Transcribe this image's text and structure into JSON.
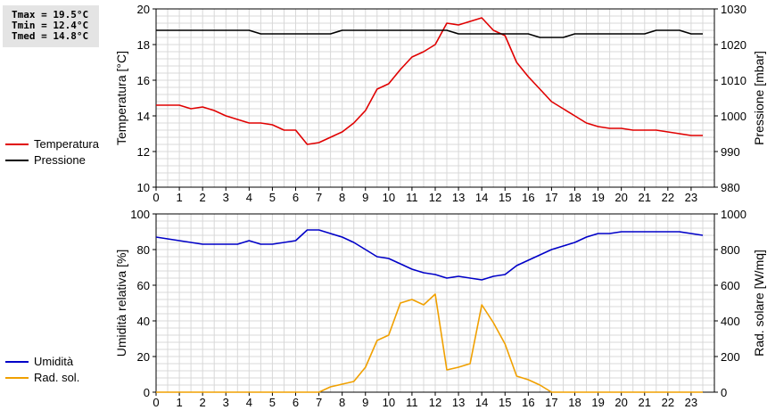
{
  "stats": {
    "tmax": "Tmax = 19.5°C",
    "tmin": "Tmin = 12.4°C",
    "tmed": "Tmed = 14.8°C"
  },
  "legend_top": [
    {
      "label": "Temperatura",
      "color": "#e00000"
    },
    {
      "label": "Pressione",
      "color": "#000000"
    }
  ],
  "legend_bottom": [
    {
      "label": "Umidità",
      "color": "#0000c8"
    },
    {
      "label": "Rad. sol.",
      "color": "#f0a000"
    }
  ],
  "chart_data": [
    {
      "type": "line",
      "xlabel": "",
      "ylabel": "Temperatura [°C]",
      "y2label": "Pressione [mbar]",
      "xlim": [
        0,
        24
      ],
      "ylim": [
        10,
        20
      ],
      "y2lim": [
        980,
        1030
      ],
      "xticks": [
        "0",
        "1",
        "2",
        "3",
        "4",
        "5",
        "6",
        "7",
        "8",
        "9",
        "10",
        "11",
        "12",
        "13",
        "14",
        "15",
        "16",
        "17",
        "18",
        "19",
        "20",
        "21",
        "22",
        "23"
      ],
      "yticks": [
        "10",
        "12",
        "14",
        "16",
        "18",
        "20"
      ],
      "y2ticks": [
        "980",
        "990",
        "1000",
        "1010",
        "1020",
        "1030"
      ],
      "grid": true,
      "series": [
        {
          "name": "Temperatura",
          "axis": "left",
          "color": "#e00000",
          "x": [
            0,
            0.5,
            1,
            1.5,
            2,
            2.5,
            3,
            3.5,
            4,
            4.5,
            5,
            5.5,
            6,
            6.5,
            7,
            7.5,
            8,
            8.5,
            9,
            9.5,
            10,
            10.5,
            11,
            11.5,
            12,
            12.5,
            13,
            13.5,
            14,
            14.5,
            15,
            15.5,
            16,
            16.5,
            17,
            17.5,
            18,
            18.5,
            19,
            19.5,
            20,
            20.5,
            21,
            21.5,
            22,
            22.5,
            23,
            23.5
          ],
          "y": [
            14.6,
            14.6,
            14.6,
            14.4,
            14.5,
            14.3,
            14.0,
            13.8,
            13.6,
            13.6,
            13.5,
            13.2,
            13.2,
            12.4,
            12.5,
            12.8,
            13.1,
            13.6,
            14.3,
            15.5,
            15.8,
            16.6,
            17.3,
            17.6,
            18.0,
            19.2,
            19.1,
            19.3,
            19.5,
            18.8,
            18.5,
            17.0,
            16.2,
            15.5,
            14.8,
            14.4,
            14.0,
            13.6,
            13.4,
            13.3,
            13.3,
            13.2,
            13.2,
            13.2,
            13.1,
            13.0,
            12.9,
            12.9
          ]
        },
        {
          "name": "Pressione",
          "axis": "right",
          "color": "#000000",
          "x": [
            0,
            4,
            4.5,
            7.5,
            8,
            12.5,
            13,
            16,
            16.5,
            17.5,
            18,
            21,
            21.5,
            22.5,
            23,
            23.5
          ],
          "y": [
            1024,
            1024,
            1023,
            1023,
            1024,
            1024,
            1023,
            1023,
            1022,
            1022,
            1023,
            1023,
            1024,
            1024,
            1023,
            1023
          ]
        }
      ]
    },
    {
      "type": "line",
      "xlabel": "",
      "ylabel": "Umidità relativa [%]",
      "y2label": "Rad. solare [W/mq]",
      "xlim": [
        0,
        24
      ],
      "ylim": [
        0,
        100
      ],
      "y2lim": [
        0,
        1000
      ],
      "xticks": [
        "0",
        "1",
        "2",
        "3",
        "4",
        "5",
        "6",
        "7",
        "8",
        "9",
        "10",
        "11",
        "12",
        "13",
        "14",
        "15",
        "16",
        "17",
        "18",
        "19",
        "20",
        "21",
        "22",
        "23"
      ],
      "yticks": [
        "0",
        "20",
        "40",
        "60",
        "80",
        "100"
      ],
      "y2ticks": [
        "0",
        "200",
        "400",
        "600",
        "800",
        "1000"
      ],
      "grid": true,
      "series": [
        {
          "name": "Umidità",
          "axis": "left",
          "color": "#0000c8",
          "x": [
            0,
            0.5,
            1,
            1.5,
            2,
            2.5,
            3,
            3.5,
            4,
            4.5,
            5,
            5.5,
            6,
            6.5,
            7,
            7.5,
            8,
            8.5,
            9,
            9.5,
            10,
            10.5,
            11,
            11.5,
            12,
            12.5,
            13,
            13.5,
            14,
            14.5,
            15,
            15.5,
            16,
            16.5,
            17,
            17.5,
            18,
            18.5,
            19,
            19.5,
            20,
            20.5,
            21,
            21.5,
            22,
            22.5,
            23,
            23.5
          ],
          "y": [
            87,
            86,
            85,
            84,
            83,
            83,
            83,
            83,
            85,
            83,
            83,
            84,
            85,
            91,
            91,
            89,
            87,
            84,
            80,
            76,
            75,
            72,
            69,
            67,
            66,
            64,
            65,
            64,
            63,
            65,
            66,
            71,
            74,
            77,
            80,
            82,
            84,
            87,
            89,
            89,
            90,
            90,
            90,
            90,
            90,
            90,
            89,
            88
          ]
        },
        {
          "name": "Rad. sol.",
          "axis": "right",
          "color": "#f0a000",
          "x": [
            0,
            7,
            7.5,
            8,
            8.5,
            9,
            9.5,
            10,
            10.5,
            11,
            11.5,
            12,
            12.5,
            13,
            13.5,
            14,
            14.5,
            15,
            15.5,
            16,
            16.5,
            17,
            17.5,
            23.5
          ],
          "y": [
            0,
            0,
            30,
            45,
            60,
            140,
            290,
            320,
            500,
            520,
            490,
            550,
            125,
            140,
            160,
            490,
            390,
            270,
            90,
            70,
            40,
            0,
            0,
            0
          ]
        }
      ]
    }
  ]
}
